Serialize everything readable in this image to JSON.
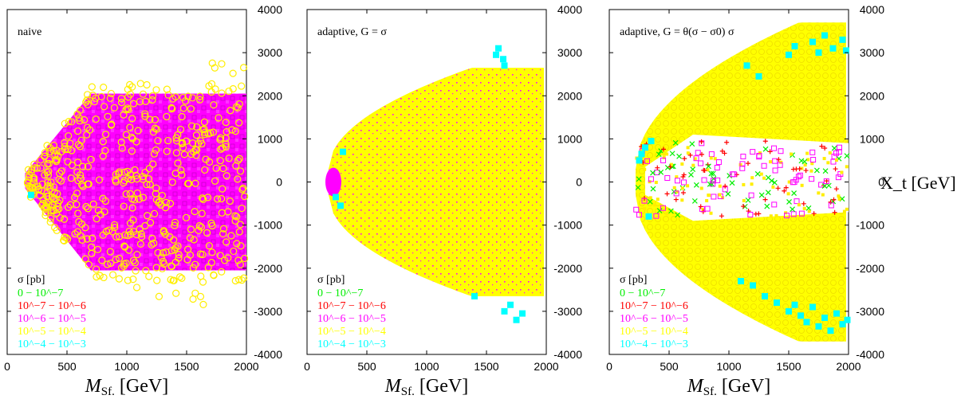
{
  "chart_data": [
    {
      "type": "scatter",
      "annotation": "naive",
      "xlabel": "M_Sf. [GeV]",
      "xlim": [
        0,
        2000
      ],
      "ylim": [
        -4000,
        4000
      ],
      "xticks": [
        "0",
        "500",
        "1000",
        "1500",
        "2000"
      ],
      "yticks": [
        "4000",
        "3000",
        "2000",
        "1000",
        "0",
        "-1000",
        "-2000",
        "-3000",
        "-4000"
      ],
      "legend_title": "σ [pb]",
      "legend": [
        {
          "label": "0 − 10^−7",
          "color": "#00ee00",
          "marker": "x"
        },
        {
          "label": "10^−7 − 10^−6",
          "color": "#ff0000",
          "marker": "+"
        },
        {
          "label": "10^−6 − 10^−5",
          "color": "#ff00ff",
          "marker": "open-square"
        },
        {
          "label": "10^−5 − 10^−4",
          "color": "#ffff00",
          "marker": "open-circle"
        },
        {
          "label": "10^−4 − 10^−3",
          "color": "#00ffff",
          "marker": "filled-square"
        }
      ],
      "dense_regions": [
        {
          "series": "10^−6 − 10^−5",
          "x_range": [
            150,
            2000
          ],
          "shape": "hexagon",
          "y_max_at_x150": 200,
          "y_max_from_x700": 2050
        },
        {
          "series": "10^−5 − 10^−4",
          "x_range": [
            150,
            2000
          ],
          "scattered_over": "magenta region",
          "outliers_y_max": 3000
        }
      ],
      "highlight_points": [
        {
          "series": "10^−4 − 10^−3",
          "x": 200,
          "y": -300
        }
      ]
    },
    {
      "type": "scatter",
      "annotation": "adaptive, G = σ",
      "xlabel": "M_Sf. [GeV]",
      "xlim": [
        0,
        2000
      ],
      "ylim": [
        -4000,
        4000
      ],
      "xticks": [
        "0",
        "500",
        "1000",
        "1500",
        "2000"
      ],
      "yticks": [
        "4000",
        "3000",
        "2000",
        "1000",
        "0",
        "-1000",
        "-2000",
        "-3000",
        "-4000"
      ],
      "legend_title": "σ [pb]",
      "legend": [
        {
          "label": "0 − 10^−7",
          "color": "#00ee00",
          "marker": "x"
        },
        {
          "label": "10^−7 − 10^−6",
          "color": "#ff0000",
          "marker": "+"
        },
        {
          "label": "10^−6 − 10^−5",
          "color": "#ff00ff",
          "marker": "open-square"
        },
        {
          "label": "10^−5 − 10^−4",
          "color": "#ffff00",
          "marker": "open-circle"
        },
        {
          "label": "10^−4 − 10^−3",
          "color": "#00ffff",
          "marker": "filled-square"
        }
      ],
      "dense_regions": [
        {
          "series": "10^−5 − 10^−4",
          "x_range": [
            180,
            2000
          ],
          "shape": "lens",
          "y_max": 3000
        },
        {
          "series": "10^−6 − 10^−5",
          "speckle_within": "yellow region"
        }
      ],
      "highlight_points": [
        {
          "series": "10^−4 − 10^−3",
          "x": 1600,
          "y": 3100
        },
        {
          "series": "10^−4 − 10^−3",
          "x": 1640,
          "y": 2850
        },
        {
          "series": "10^−4 − 10^−3",
          "x": 1580,
          "y": 2950
        },
        {
          "series": "10^−4 − 10^−3",
          "x": 1650,
          "y": 2700
        },
        {
          "series": "10^−4 − 10^−3",
          "x": 300,
          "y": 700
        },
        {
          "series": "10^−4 − 10^−3",
          "x": 240,
          "y": -350
        },
        {
          "series": "10^−4 − 10^−3",
          "x": 280,
          "y": -550
        },
        {
          "series": "10^−4 − 10^−3",
          "x": 1400,
          "y": -2650
        },
        {
          "series": "10^−4 − 10^−3",
          "x": 1700,
          "y": -2850
        },
        {
          "series": "10^−4 − 10^−3",
          "x": 1650,
          "y": -3000
        },
        {
          "series": "10^−4 − 10^−3",
          "x": 1800,
          "y": -3050
        },
        {
          "series": "10^−4 − 10^−3",
          "x": 1750,
          "y": -3200
        }
      ]
    },
    {
      "type": "scatter",
      "annotation": "adaptive, G = θ(σ − σ0) σ",
      "xlabel": "M_Sf. [GeV]",
      "ylabel": "X_t [GeV]",
      "xlim": [
        0,
        2000
      ],
      "ylim": [
        -4000,
        4000
      ],
      "xticks": [
        "0",
        "500",
        "1000",
        "1500",
        "2000"
      ],
      "yticks": [
        "4000",
        "3000",
        "2000",
        "1000",
        "0",
        "-1000",
        "-2000",
        "-3000",
        "-4000"
      ],
      "legend_title": "σ [pb]",
      "legend": [
        {
          "label": "0 − 10^−7",
          "color": "#00ee00",
          "marker": "x"
        },
        {
          "label": "10^−7 − 10^−6",
          "color": "#ff0000",
          "marker": "+"
        },
        {
          "label": "10^−6 − 10^−5",
          "color": "#ff00ff",
          "marker": "open-square"
        },
        {
          "label": "10^−5 − 10^−4",
          "color": "#ffff00",
          "marker": "open-circle"
        },
        {
          "label": "10^−4 − 10^−3",
          "color": "#00ffff",
          "marker": "filled-square"
        }
      ],
      "dense_regions": [
        {
          "series": "10^−5 − 10^−4",
          "x_range": [
            250,
            2000
          ],
          "shape": "lens with central gap",
          "y_gap": [
            -800,
            1000
          ]
        },
        {
          "series": "mixed low cross-section",
          "x_range": [
            200,
            2000
          ],
          "y_range": [
            -800,
            1000
          ]
        }
      ],
      "highlight_points": [
        {
          "series": "10^−4 − 10^−3",
          "x": 250,
          "y": 500
        },
        {
          "series": "10^−4 − 10^−3",
          "x": 300,
          "y": 800
        },
        {
          "series": "10^−4 − 10^−3",
          "x": 350,
          "y": 950
        },
        {
          "series": "10^−4 − 10^−3",
          "x": 270,
          "y": 650
        },
        {
          "series": "10^−4 − 10^−3",
          "x": 330,
          "y": -800
        },
        {
          "series": "10^−4 − 10^−3",
          "x": 1150,
          "y": 2700
        },
        {
          "series": "10^−4 − 10^−3",
          "x": 1250,
          "y": 2450
        },
        {
          "series": "10^−4 − 10^−3",
          "x": 1500,
          "y": 2950
        },
        {
          "series": "10^−4 − 10^−3",
          "x": 1550,
          "y": 3150
        },
        {
          "series": "10^−4 − 10^−3",
          "x": 1700,
          "y": 3250
        },
        {
          "series": "10^−4 − 10^−3",
          "x": 1750,
          "y": 3000
        },
        {
          "series": "10^−4 − 10^−3",
          "x": 1800,
          "y": 3400
        },
        {
          "series": "10^−4 − 10^−3",
          "x": 1870,
          "y": 3100
        },
        {
          "series": "10^−4 − 10^−3",
          "x": 1950,
          "y": 3300
        },
        {
          "series": "10^−4 − 10^−3",
          "x": 1980,
          "y": 3050
        },
        {
          "series": "10^−4 − 10^−3",
          "x": 1100,
          "y": -2300
        },
        {
          "series": "10^−4 − 10^−3",
          "x": 1200,
          "y": -2400
        },
        {
          "series": "10^−4 − 10^−3",
          "x": 1300,
          "y": -2650
        },
        {
          "series": "10^−4 − 10^−3",
          "x": 1400,
          "y": -2800
        },
        {
          "series": "10^−4 − 10^−3",
          "x": 1500,
          "y": -3000
        },
        {
          "series": "10^−4 − 10^−3",
          "x": 1550,
          "y": -2850
        },
        {
          "series": "10^−4 − 10^−3",
          "x": 1600,
          "y": -3100
        },
        {
          "series": "10^−4 − 10^−3",
          "x": 1650,
          "y": -3250
        },
        {
          "series": "10^−4 − 10^−3",
          "x": 1700,
          "y": -2900
        },
        {
          "series": "10^−4 − 10^−3",
          "x": 1750,
          "y": -3350
        },
        {
          "series": "10^−4 − 10^−3",
          "x": 1800,
          "y": -3150
        },
        {
          "series": "10^−4 − 10^−3",
          "x": 1850,
          "y": -3450
        },
        {
          "series": "10^−4 − 10^−3",
          "x": 1900,
          "y": -3050
        },
        {
          "series": "10^−4 − 10^−3",
          "x": 1950,
          "y": -3300
        },
        {
          "series": "10^−4 − 10^−3",
          "x": 1990,
          "y": -3200
        }
      ]
    }
  ]
}
